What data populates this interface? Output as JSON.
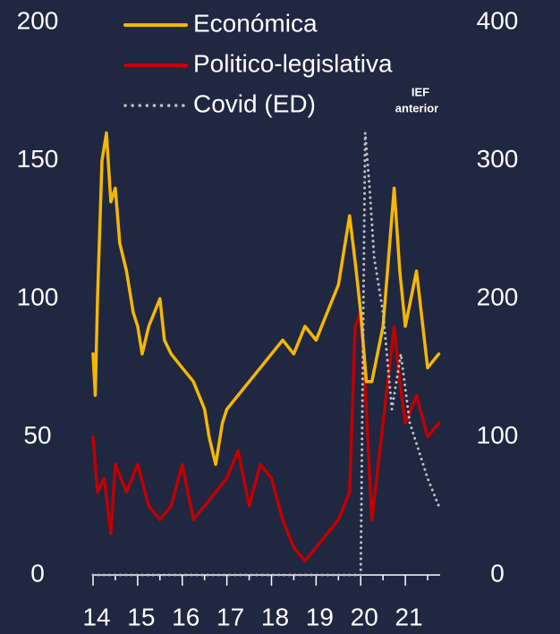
{
  "chart_data": {
    "type": "line",
    "xlim": [
      14,
      21.78
    ],
    "xticks": [
      14,
      15,
      16,
      17,
      18,
      19,
      20,
      21
    ],
    "ylim": [
      0,
      200
    ],
    "yticks": [
      0,
      50,
      100,
      150,
      200
    ],
    "y2lim": [
      0,
      400
    ],
    "y2ticks": [
      0,
      100,
      200,
      300,
      400
    ],
    "annotation": [
      "IEF",
      "anterior"
    ],
    "series": [
      {
        "name": "Económica",
        "color": "#f5b800",
        "style": "solid",
        "x": [
          14,
          14.05,
          14.1,
          14.2,
          14.3,
          14.4,
          14.5,
          14.6,
          14.75,
          14.9,
          15,
          15.1,
          15.25,
          15.5,
          15.6,
          15.75,
          16,
          16.25,
          16.5,
          16.6,
          16.75,
          16.9,
          17,
          17.25,
          17.5,
          17.75,
          18,
          18.25,
          18.5,
          18.75,
          19,
          19.25,
          19.5,
          19.75,
          19.9,
          20,
          20.125,
          20.25,
          20.5,
          20.75,
          20.875,
          21,
          21.25,
          21.5,
          21.75
        ],
        "values": [
          80,
          65,
          100,
          150,
          160,
          135,
          140,
          120,
          110,
          95,
          90,
          80,
          90,
          100,
          85,
          80,
          75,
          70,
          60,
          50,
          40,
          55,
          60,
          65,
          70,
          75,
          80,
          85,
          80,
          90,
          85,
          95,
          105,
          130,
          110,
          95,
          70,
          70,
          90,
          140,
          110,
          90,
          110,
          75,
          80
        ]
      },
      {
        "name": "Politico-legislativa",
        "color": "#c00000",
        "style": "solid",
        "x": [
          14,
          14.1,
          14.25,
          14.4,
          14.5,
          14.75,
          15,
          15.25,
          15.5,
          15.75,
          16,
          16.25,
          16.5,
          16.75,
          17,
          17.25,
          17.5,
          17.75,
          18,
          18.25,
          18.5,
          18.75,
          19,
          19.25,
          19.5,
          19.75,
          19.875,
          20,
          20.125,
          20.25,
          20.5,
          20.75,
          20.875,
          21,
          21.25,
          21.5,
          21.75
        ],
        "values": [
          50,
          30,
          35,
          15,
          40,
          30,
          40,
          25,
          20,
          25,
          40,
          20,
          25,
          30,
          35,
          45,
          25,
          40,
          35,
          20,
          10,
          5,
          10,
          15,
          20,
          30,
          90,
          95,
          60,
          20,
          55,
          90,
          70,
          55,
          65,
          50,
          55
        ]
      },
      {
        "name": "Covid (ED)",
        "color": "#bfbfbf",
        "style": "dotted",
        "axis": "y2",
        "x": [
          14,
          20,
          20.1,
          20.2,
          20.3,
          20.5,
          20.7,
          20.9,
          21.1,
          21.3,
          21.5,
          21.75
        ],
        "values": [
          0,
          0,
          320,
          280,
          230,
          190,
          120,
          160,
          110,
          90,
          70,
          50
        ]
      }
    ]
  }
}
